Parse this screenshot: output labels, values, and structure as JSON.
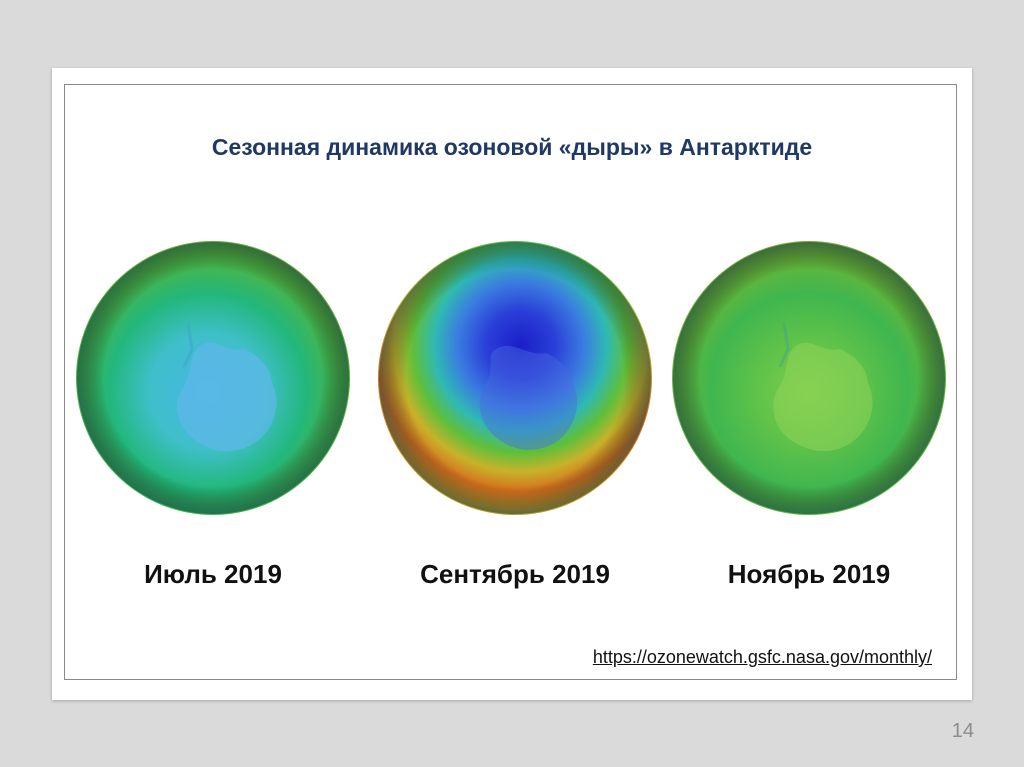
{
  "slide": {
    "title": "Сезонная динамика озоновой «дыры» в Антарктиде",
    "maps": [
      {
        "caption": "Июль 2019",
        "image": "ozone-map-july-icon"
      },
      {
        "caption": "Сентябрь 2019",
        "image": "ozone-map-september-icon"
      },
      {
        "caption": "Ноябрь 2019",
        "image": "ozone-map-november-icon"
      }
    ],
    "source_link": "https://ozonewatch.gsfc.nasa.gov/monthly/",
    "page_number": "14"
  },
  "colors": {
    "title": "#1f3864",
    "background": "#dadada",
    "slide": "#ffffff"
  }
}
